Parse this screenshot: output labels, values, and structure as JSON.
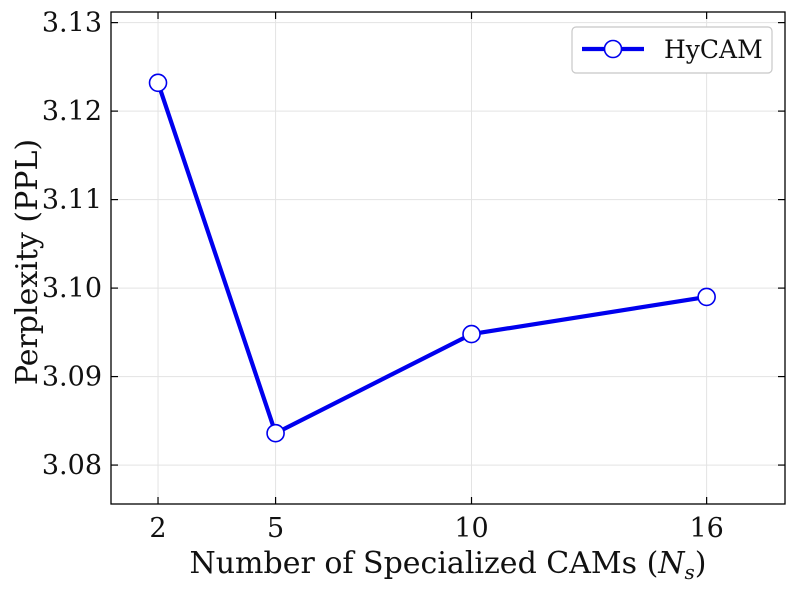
{
  "chart_data": {
    "type": "line",
    "title": "",
    "xlabel": "Number of Specialized CAMs (",
    "xlabel_symbol": "N",
    "xlabel_subscript": "s",
    "xlabel_close": ")",
    "ylabel": "Perplexity (PPL)",
    "x_ticks": [
      2,
      5,
      10,
      16
    ],
    "x_tick_labels": [
      "2",
      "5",
      "10",
      "16"
    ],
    "xlim": [
      0.8,
      18.0
    ],
    "y_ticks": [
      3.08,
      3.09,
      3.1,
      3.11,
      3.12,
      3.13
    ],
    "y_tick_labels": [
      "3.08",
      "3.09",
      "3.10",
      "3.11",
      "3.12",
      "3.13"
    ],
    "ylim": [
      3.0756,
      3.1312
    ],
    "grid": true,
    "legend_position": "top-right",
    "series": [
      {
        "name": "HyCAM",
        "color": "#0000ee",
        "marker": "open-circle",
        "x": [
          2,
          5,
          10,
          16
        ],
        "y": [
          3.1232,
          3.0836,
          3.0948,
          3.099
        ]
      }
    ]
  }
}
